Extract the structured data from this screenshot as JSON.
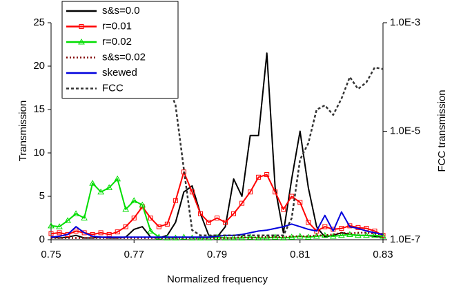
{
  "chart_data": {
    "type": "line",
    "x_label": "Normalized frequency",
    "y_label": "Transmission",
    "y2_label": "FCC transmission",
    "x": [
      0.75,
      0.752,
      0.754,
      0.756,
      0.758,
      0.76,
      0.762,
      0.764,
      0.766,
      0.768,
      0.77,
      0.772,
      0.774,
      0.776,
      0.778,
      0.78,
      0.782,
      0.784,
      0.786,
      0.788,
      0.79,
      0.792,
      0.794,
      0.796,
      0.798,
      0.8,
      0.802,
      0.804,
      0.806,
      0.808,
      0.81,
      0.812,
      0.814,
      0.816,
      0.818,
      0.82,
      0.822,
      0.824,
      0.826,
      0.828,
      0.83
    ],
    "xlim": [
      0.75,
      0.83
    ],
    "xticks": [
      0.75,
      0.77,
      0.79,
      0.81,
      0.83
    ],
    "ylim": [
      0,
      25
    ],
    "yticks": [
      0,
      5,
      10,
      15,
      20,
      25
    ],
    "y2lim": [
      1e-07,
      0.001
    ],
    "y2_log": true,
    "y2ticks": [
      {
        "value": 1e-07,
        "label": "1.0E-7"
      },
      {
        "value": 1e-05,
        "label": "1.0E-5"
      },
      {
        "value": 0.001,
        "label": "1.0E-3"
      }
    ],
    "legend": "top-left",
    "series": [
      {
        "name": "s&s=0.0",
        "color": "#000000",
        "dash": "solid",
        "marker": "none",
        "values": [
          0.3,
          0.2,
          0.3,
          0.5,
          0.2,
          0.2,
          0.3,
          0.2,
          0.2,
          0.3,
          1.2,
          1.5,
          0.3,
          0.2,
          0.5,
          2,
          5.5,
          6.2,
          3,
          0.5,
          0.3,
          1.5,
          7,
          5,
          12,
          12,
          21.5,
          6,
          0.8,
          7,
          12.5,
          6,
          1.5,
          0.3,
          0.5,
          0.8,
          0.6,
          0.5,
          0.5,
          0.4,
          0.3
        ]
      },
      {
        "name": "r=0.01",
        "color": "#ff0000",
        "dash": "solid",
        "marker": "square",
        "values": [
          0.7,
          0.8,
          0.6,
          1.0,
          0.8,
          0.6,
          0.8,
          0.6,
          0.9,
          1.5,
          2.5,
          3.8,
          2.5,
          1.5,
          1.8,
          4.5,
          7.8,
          5.5,
          3,
          2,
          2.5,
          2,
          3,
          4.2,
          5.5,
          7.2,
          7.5,
          5.5,
          3.5,
          5,
          4.3,
          2,
          1,
          1.5,
          1.2,
          1.3,
          1.6,
          1.4,
          1.3,
          1,
          0.5
        ]
      },
      {
        "name": "r=0.02",
        "color": "#00dd00",
        "dash": "solid",
        "marker": "triangle",
        "values": [
          1.6,
          1.5,
          2.2,
          3,
          2.5,
          6.5,
          5.5,
          6,
          7,
          3.5,
          4.5,
          4,
          1,
          0.3,
          0.2,
          0.2,
          0.3,
          0.2,
          0.2,
          0.2,
          0.3,
          0.2,
          0.2,
          0.2,
          0.3,
          0.2,
          0.2,
          0.3,
          0.2,
          0.3,
          0.4,
          0.3,
          0.4,
          0.5,
          0.4,
          0.5,
          0.6,
          0.5,
          0.5,
          0.5,
          0.4
        ]
      },
      {
        "name": "s&s=0.02",
        "color": "#800000",
        "dash": "dot",
        "marker": "none",
        "values": [
          0.2,
          0.2,
          0.2,
          0.2,
          0.2,
          0.2,
          0.2,
          0.2,
          0.2,
          0.2,
          0.2,
          0.2,
          0.2,
          0.2,
          0.2,
          0.2,
          0.2,
          0.2,
          0.2,
          0.2,
          0.2,
          0.2,
          0.2,
          0.3,
          0.2,
          0.3,
          0.3,
          0.3,
          0.3,
          0.4,
          0.4,
          0.4,
          0.5,
          0.5,
          0.6,
          0.8,
          0.7,
          0.8,
          0.8,
          0.7,
          0.6
        ]
      },
      {
        "name": "skewed",
        "color": "#0000dd",
        "dash": "solid",
        "marker": "none",
        "values": [
          0.3,
          0.4,
          0.6,
          1.5,
          0.8,
          0.4,
          0.3,
          0.3,
          0.3,
          0.3,
          0.3,
          0.3,
          0.3,
          0.3,
          0.3,
          0.3,
          0.3,
          0.3,
          0.3,
          0.3,
          0.4,
          0.5,
          0.5,
          0.6,
          0.8,
          1.0,
          1.1,
          1.3,
          1.5,
          1.8,
          1.5,
          1.2,
          1.0,
          2.8,
          1.0,
          3.2,
          1.5,
          1.3,
          1.0,
          0.8,
          0.6
        ]
      },
      {
        "name": "FCC",
        "color": "#333333",
        "dash": "dash",
        "marker": "none",
        "axis": "y2",
        "values": [
          null,
          null,
          null,
          null,
          null,
          null,
          null,
          null,
          null,
          null,
          null,
          null,
          6e-05,
          0.0001,
          8e-05,
          3e-05,
          2e-06,
          1.5e-07,
          1.2e-07,
          1.2e-07,
          1.2e-07,
          1.2e-07,
          1.2e-07,
          1.2e-07,
          1.2e-07,
          1.2e-07,
          1.2e-07,
          1.2e-07,
          1.2e-07,
          2.5e-07,
          3e-06,
          6e-06,
          2.5e-05,
          3e-05,
          2e-05,
          4e-05,
          0.0001,
          6e-05,
          8e-05,
          0.00015,
          0.00014
        ]
      }
    ]
  }
}
